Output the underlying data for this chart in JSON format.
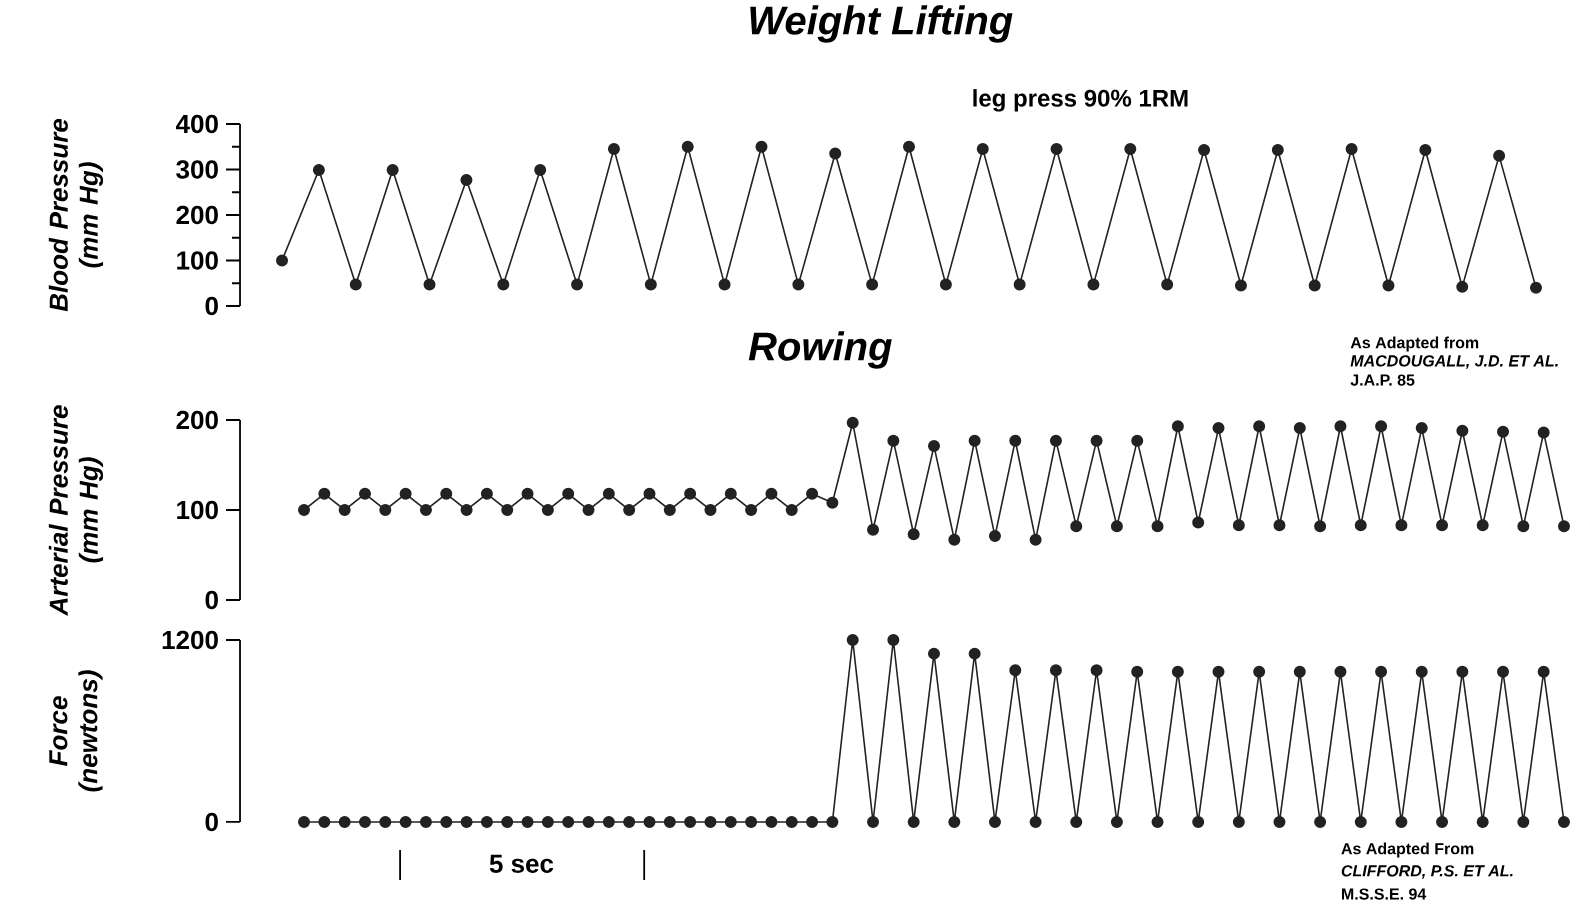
{
  "chart_data": [
    {
      "type": "line",
      "title": "Weight Lifting",
      "ylabel": "Blood Pressure (mm Hg)",
      "ylim": [
        0,
        400
      ],
      "yticks": [
        0,
        100,
        200,
        300,
        400
      ],
      "tick_labels": "y",
      "marker": "circle",
      "line_style": "solid",
      "annotations": [
        "leg press 90%  1RM",
        "As Adapted from",
        "MACDOUGALL, J.D. ET AL.",
        "J.A.P. 85"
      ],
      "categories": [
        null,
        null,
        null,
        null,
        null,
        null,
        null,
        null,
        null,
        null,
        null,
        null,
        null,
        null,
        null,
        null,
        null,
        null,
        null,
        null,
        null,
        null,
        null,
        null,
        null,
        null,
        null,
        null,
        null,
        null,
        null,
        null,
        null,
        null,
        null
      ],
      "series": [
        {
          "color": "#222222",
          "values": [
            100,
            299,
            47,
            299,
            47,
            277,
            47,
            299,
            47,
            345,
            47,
            350,
            47,
            350,
            47,
            335,
            47,
            350,
            47,
            345,
            47,
            345,
            47,
            345,
            47,
            343,
            45,
            343,
            45,
            345,
            45,
            343,
            42,
            330,
            40
          ]
        }
      ]
    },
    {
      "type": "line",
      "title": "Rowing",
      "ylabel": "Arterial Pressure (mm Hg)",
      "ylim": [
        0,
        200
      ],
      "yticks": [
        0,
        100,
        200
      ],
      "tick_labels": "y",
      "marker": "circle",
      "line_style": "solid",
      "categories": [
        null,
        null,
        null,
        null,
        null,
        null,
        null,
        null,
        null,
        null,
        null,
        null,
        null,
        null,
        null,
        null,
        null,
        null,
        null,
        null,
        null,
        null,
        null,
        null,
        null,
        null,
        null,
        null,
        null,
        null,
        null,
        null,
        null,
        null,
        null,
        null,
        null,
        null,
        null,
        null,
        null,
        null,
        null,
        null,
        null,
        null,
        null,
        null,
        null,
        null,
        null,
        null,
        null,
        null,
        null,
        null,
        null,
        null,
        null,
        null,
        null,
        null,
        null
      ],
      "series": [
        {
          "color": "#222222",
          "values": [
            100,
            118,
            100,
            118,
            100,
            118,
            100,
            118,
            100,
            118,
            100,
            118,
            100,
            118,
            100,
            118,
            100,
            118,
            100,
            118,
            100,
            118,
            100,
            118,
            100,
            118,
            108,
            197,
            78,
            177,
            73,
            171,
            67,
            177,
            71,
            177,
            67,
            177,
            82,
            177,
            82,
            177,
            82,
            193,
            86,
            191,
            83,
            193,
            83,
            191,
            82,
            193,
            83,
            193,
            83,
            191,
            83,
            188,
            83,
            187,
            82,
            186,
            82
          ]
        }
      ]
    },
    {
      "type": "line",
      "ylabel": "Force (newtons)",
      "ylim": [
        0,
        1200
      ],
      "yticks": [
        0,
        1200
      ],
      "tick_labels": "y",
      "marker": "circle",
      "line_style": "solid",
      "annotations": [
        "5 sec",
        "As Adapted From",
        "CLIFFORD, P.S. ET AL.",
        "M.S.S.E. 94"
      ],
      "categories": [
        null,
        null,
        null,
        null,
        null,
        null,
        null,
        null,
        null,
        null,
        null,
        null,
        null,
        null,
        null,
        null,
        null,
        null,
        null,
        null,
        null,
        null,
        null,
        null,
        null,
        null,
        null,
        null,
        null,
        null,
        null,
        null,
        null,
        null,
        null,
        null,
        null,
        null,
        null,
        null,
        null,
        null,
        null,
        null,
        null,
        null,
        null,
        null,
        null,
        null,
        null,
        null,
        null,
        null,
        null,
        null,
        null,
        null,
        null,
        null,
        null,
        null,
        null
      ],
      "series": [
        {
          "color": "#222222",
          "values": [
            0,
            0,
            0,
            0,
            0,
            0,
            0,
            0,
            0,
            0,
            0,
            0,
            0,
            0,
            0,
            0,
            0,
            0,
            0,
            0,
            0,
            0,
            0,
            0,
            0,
            0,
            0,
            1200,
            0,
            1200,
            0,
            1110,
            0,
            1110,
            0,
            1000,
            0,
            1000,
            0,
            1000,
            0,
            990,
            0,
            990,
            0,
            990,
            0,
            990,
            0,
            990,
            0,
            990,
            0,
            990,
            0,
            990,
            0,
            990,
            0,
            990,
            0,
            990,
            0
          ]
        }
      ]
    }
  ]
}
